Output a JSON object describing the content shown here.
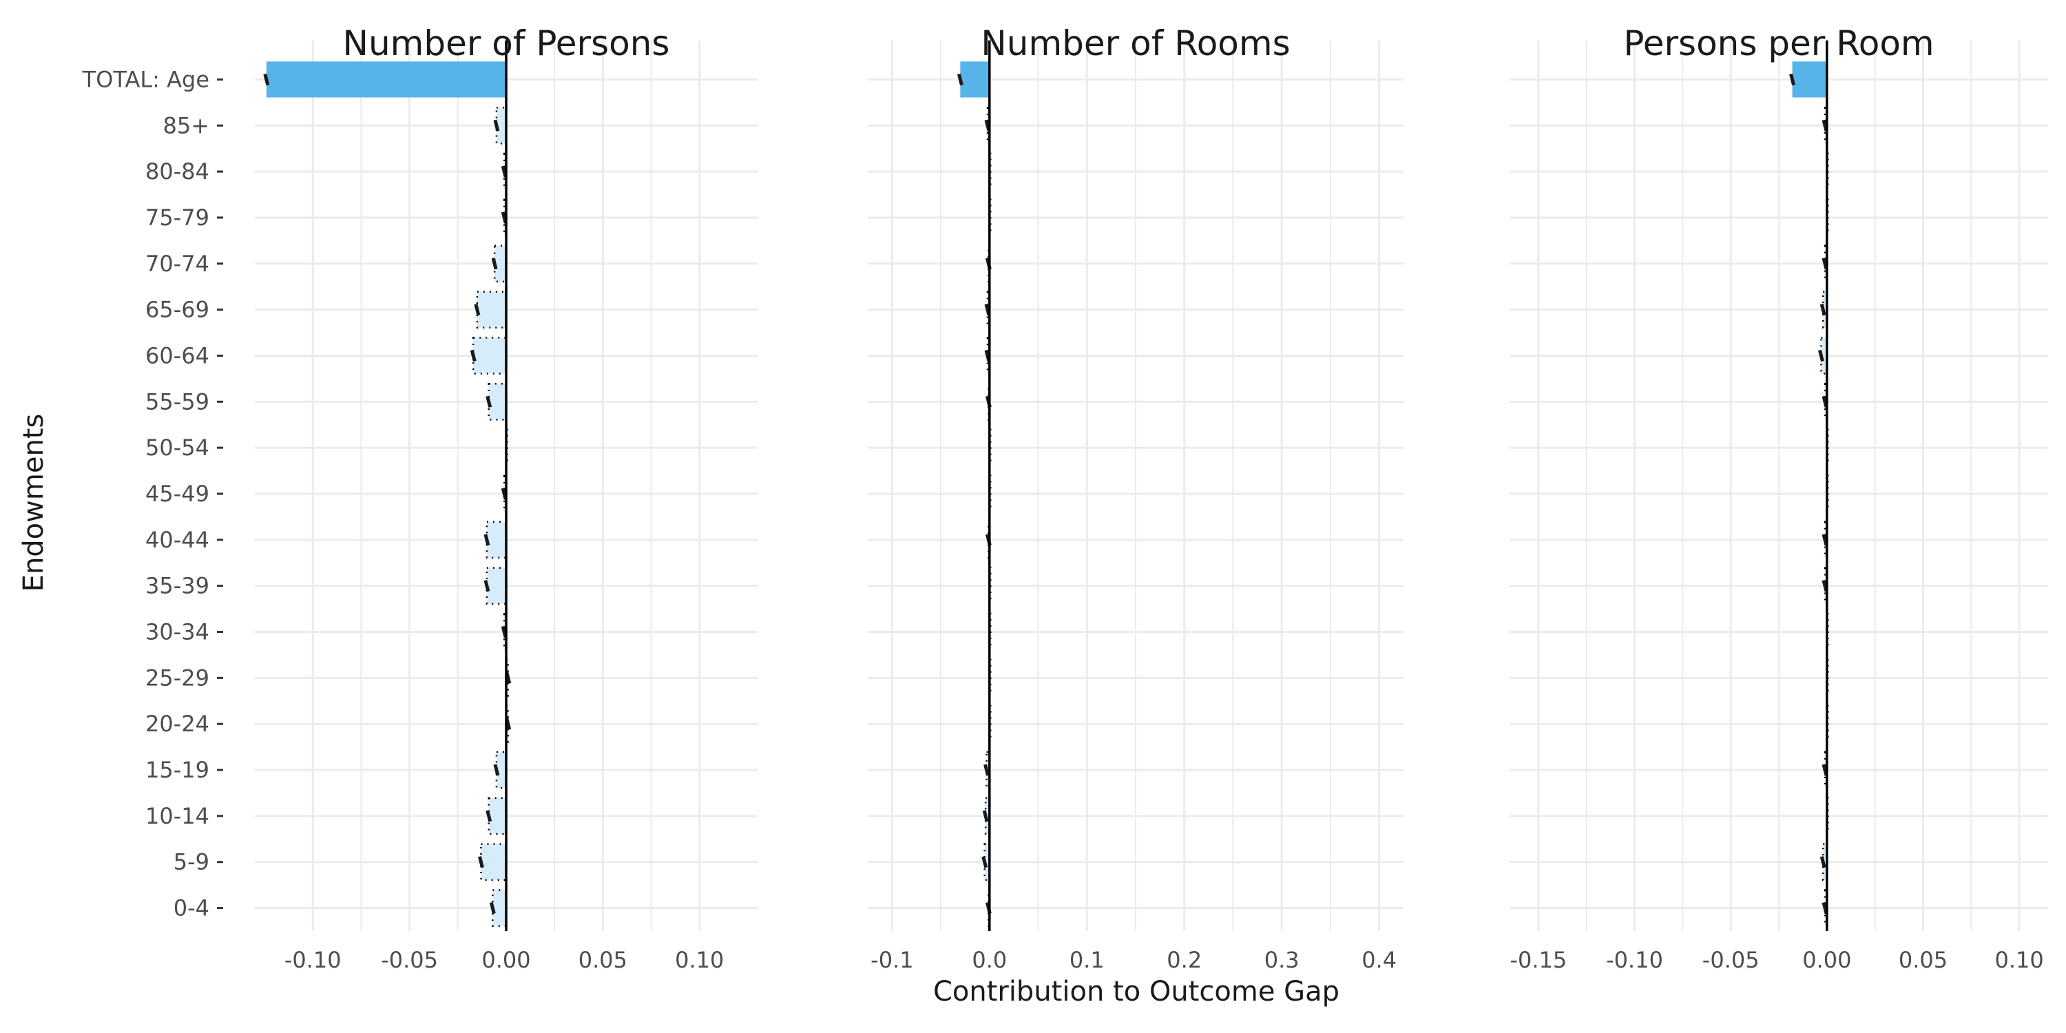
{
  "figure": {
    "x_axis_title": "Contribution to Outcome Gap",
    "y_axis_title": "Endowments",
    "colors": {
      "total_bar": "#56B4E9",
      "age_bar": "#D6ECFA",
      "grid": "#EBEBEB",
      "zero_line": "#000000"
    }
  },
  "chart_data": [
    {
      "type": "bar",
      "orientation": "horizontal",
      "title": "Number of Persons",
      "categories": [
        "TOTAL: Age",
        "85+",
        "80-84",
        "75-79",
        "70-74",
        "65-69",
        "60-64",
        "55-59",
        "50-54",
        "45-49",
        "40-44",
        "35-39",
        "30-34",
        "25-29",
        "20-24",
        "15-19",
        "10-14",
        "5-9",
        "0-4"
      ],
      "values": [
        -0.124,
        -0.005,
        -0.001,
        -0.001,
        -0.006,
        -0.015,
        -0.017,
        -0.009,
        0.0,
        -0.001,
        -0.01,
        -0.01,
        -0.001,
        0.001,
        0.001,
        -0.005,
        -0.009,
        -0.013,
        -0.007
      ],
      "xlim": [
        -0.13,
        0.13
      ],
      "xticks": [
        -0.1,
        -0.05,
        0.0,
        0.05,
        0.1
      ],
      "xtick_labels": [
        "-0.10",
        "-0.05",
        "0.00",
        "0.05",
        "0.10"
      ],
      "grid": true
    },
    {
      "type": "bar",
      "orientation": "horizontal",
      "title": "Number of Rooms",
      "categories": [
        "TOTAL: Age",
        "85+",
        "80-84",
        "75-79",
        "70-74",
        "65-69",
        "60-64",
        "55-59",
        "50-54",
        "45-49",
        "40-44",
        "35-39",
        "30-34",
        "25-29",
        "20-24",
        "15-19",
        "10-14",
        "5-9",
        "0-4"
      ],
      "values": [
        -0.03,
        -0.002,
        0.0,
        0.0,
        -0.001,
        -0.002,
        -0.002,
        -0.001,
        0.0,
        0.0,
        -0.001,
        0.0,
        0.0,
        0.0,
        0.0,
        -0.003,
        -0.004,
        -0.005,
        -0.001
      ],
      "xlim": [
        -0.125,
        0.425
      ],
      "xticks": [
        -0.1,
        0.0,
        0.1,
        0.2,
        0.3,
        0.4
      ],
      "xtick_labels": [
        "-0.1",
        "0.0",
        "0.1",
        "0.2",
        "0.3",
        "0.4"
      ],
      "grid": true
    },
    {
      "type": "bar",
      "orientation": "horizontal",
      "title": "Persons per Room",
      "categories": [
        "TOTAL: Age",
        "85+",
        "80-84",
        "75-79",
        "70-74",
        "65-69",
        "60-64",
        "55-59",
        "50-54",
        "45-49",
        "40-44",
        "35-39",
        "30-34",
        "25-29",
        "20-24",
        "15-19",
        "10-14",
        "5-9",
        "0-4"
      ],
      "values": [
        -0.018,
        -0.001,
        0.0,
        0.0,
        -0.001,
        -0.002,
        -0.003,
        -0.001,
        0.0,
        0.0,
        -0.001,
        -0.001,
        0.0,
        0.0,
        0.0,
        -0.001,
        0.0,
        -0.002,
        -0.001
      ],
      "xlim": [
        -0.165,
        0.115
      ],
      "xticks": [
        -0.15,
        -0.1,
        -0.05,
        0.0,
        0.05,
        0.1
      ],
      "xtick_labels": [
        "-0.15",
        "-0.10",
        "-0.05",
        "0.00",
        "0.05",
        "0.10"
      ],
      "grid": true
    }
  ]
}
